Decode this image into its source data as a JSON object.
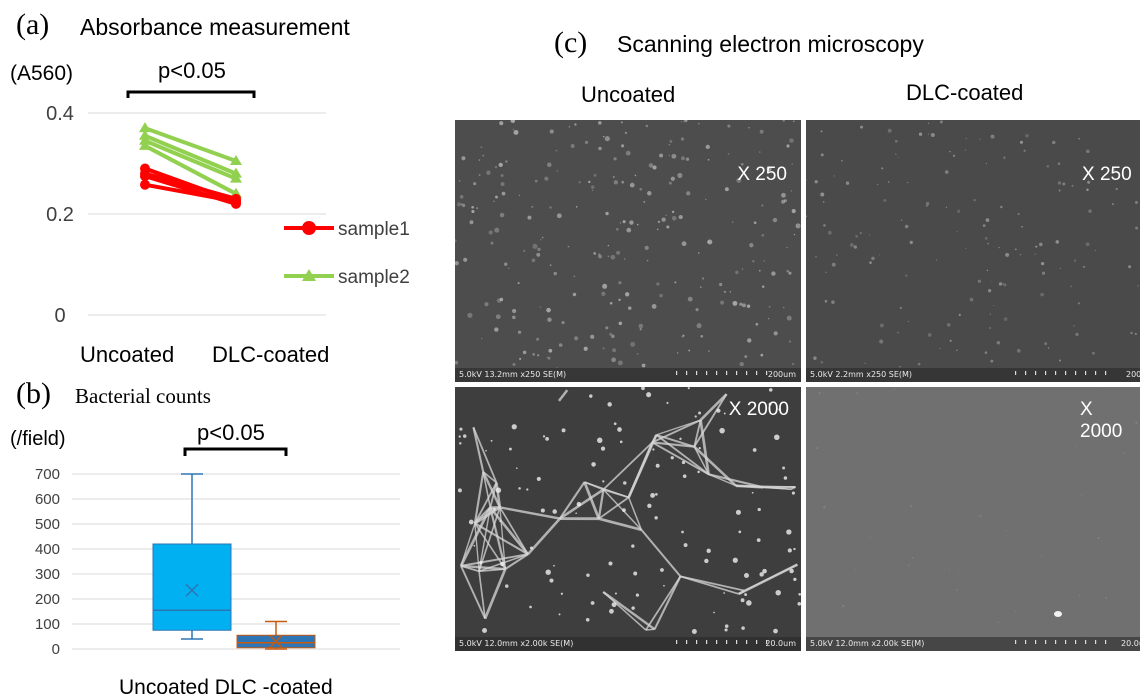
{
  "panel_a": {
    "letter": "(a)",
    "title": "Absorbance measurement",
    "unit": "(A560)",
    "significance": "p<0.05",
    "xlabels": [
      "Uncoated",
      "DLC-coated"
    ],
    "yticks": [
      "0.4",
      "0.2",
      "0"
    ],
    "legend": [
      "sample1",
      "sample2"
    ]
  },
  "panel_b": {
    "letter": "(b)",
    "title": "Bacterial counts",
    "unit": "(/field)",
    "significance": "p<0.05",
    "xlabel": "Uncoated DLC -coated",
    "yticks": [
      "700",
      "600",
      "500",
      "400",
      "300",
      "200",
      "100",
      "0"
    ]
  },
  "panel_c": {
    "letter": "(c)",
    "title": "Scanning electron microscopy",
    "col_uncoated": "Uncoated",
    "col_dlc": "DLC-coated",
    "mag_250": "X 250",
    "mag_2000": "X 2000",
    "info_u250": "5.0kV 13.2mm x250 SE(M)",
    "info_d250": "5.0kV 2.2mm x250 SE(M)",
    "info_u2000": "5.0kV 12.0mm x2.00k SE(M)",
    "info_d2000": "5.0kV 12.0mm x2.00k SE(M)",
    "scale_250": "200um",
    "scale_2000": "20.0um"
  },
  "colors": {
    "sample1": "#ff0000",
    "sample2": "#92d050",
    "box_uncoated": "#00b0f0",
    "box_dlc": "#2e75b6",
    "whisker_uncoated": "#2e75b6",
    "whisker_dlc": "#c55a11"
  },
  "chart_data": [
    {
      "type": "line",
      "title": "Absorbance measurement",
      "ylabel": "(A560)",
      "categories": [
        "Uncoated",
        "DLC-coated"
      ],
      "ylim": [
        0,
        0.4
      ],
      "grid": true,
      "legend_position": "right",
      "series": [
        {
          "name": "sample1",
          "values": [
            [
              0.29,
              0.225
            ],
            [
              0.28,
              0.23
            ],
            [
              0.275,
              0.22
            ],
            [
              0.258,
              0.225
            ]
          ]
        },
        {
          "name": "sample2",
          "values": [
            [
              0.37,
              0.305
            ],
            [
              0.355,
              0.28
            ],
            [
              0.345,
              0.27
            ],
            [
              0.335,
              0.24
            ]
          ]
        }
      ]
    },
    {
      "type": "box",
      "title": "Bacterial counts",
      "ylabel": "(/field)",
      "categories": [
        "Uncoated",
        "DLC -coated"
      ],
      "ylim": [
        0,
        700
      ],
      "grid": true,
      "boxes": [
        {
          "min": 40,
          "q1": 75,
          "median": 155,
          "q3": 420,
          "max": 700,
          "mean": 235
        },
        {
          "min": 0,
          "q1": 5,
          "median": 25,
          "q3": 55,
          "max": 110,
          "mean": 30
        }
      ]
    }
  ]
}
